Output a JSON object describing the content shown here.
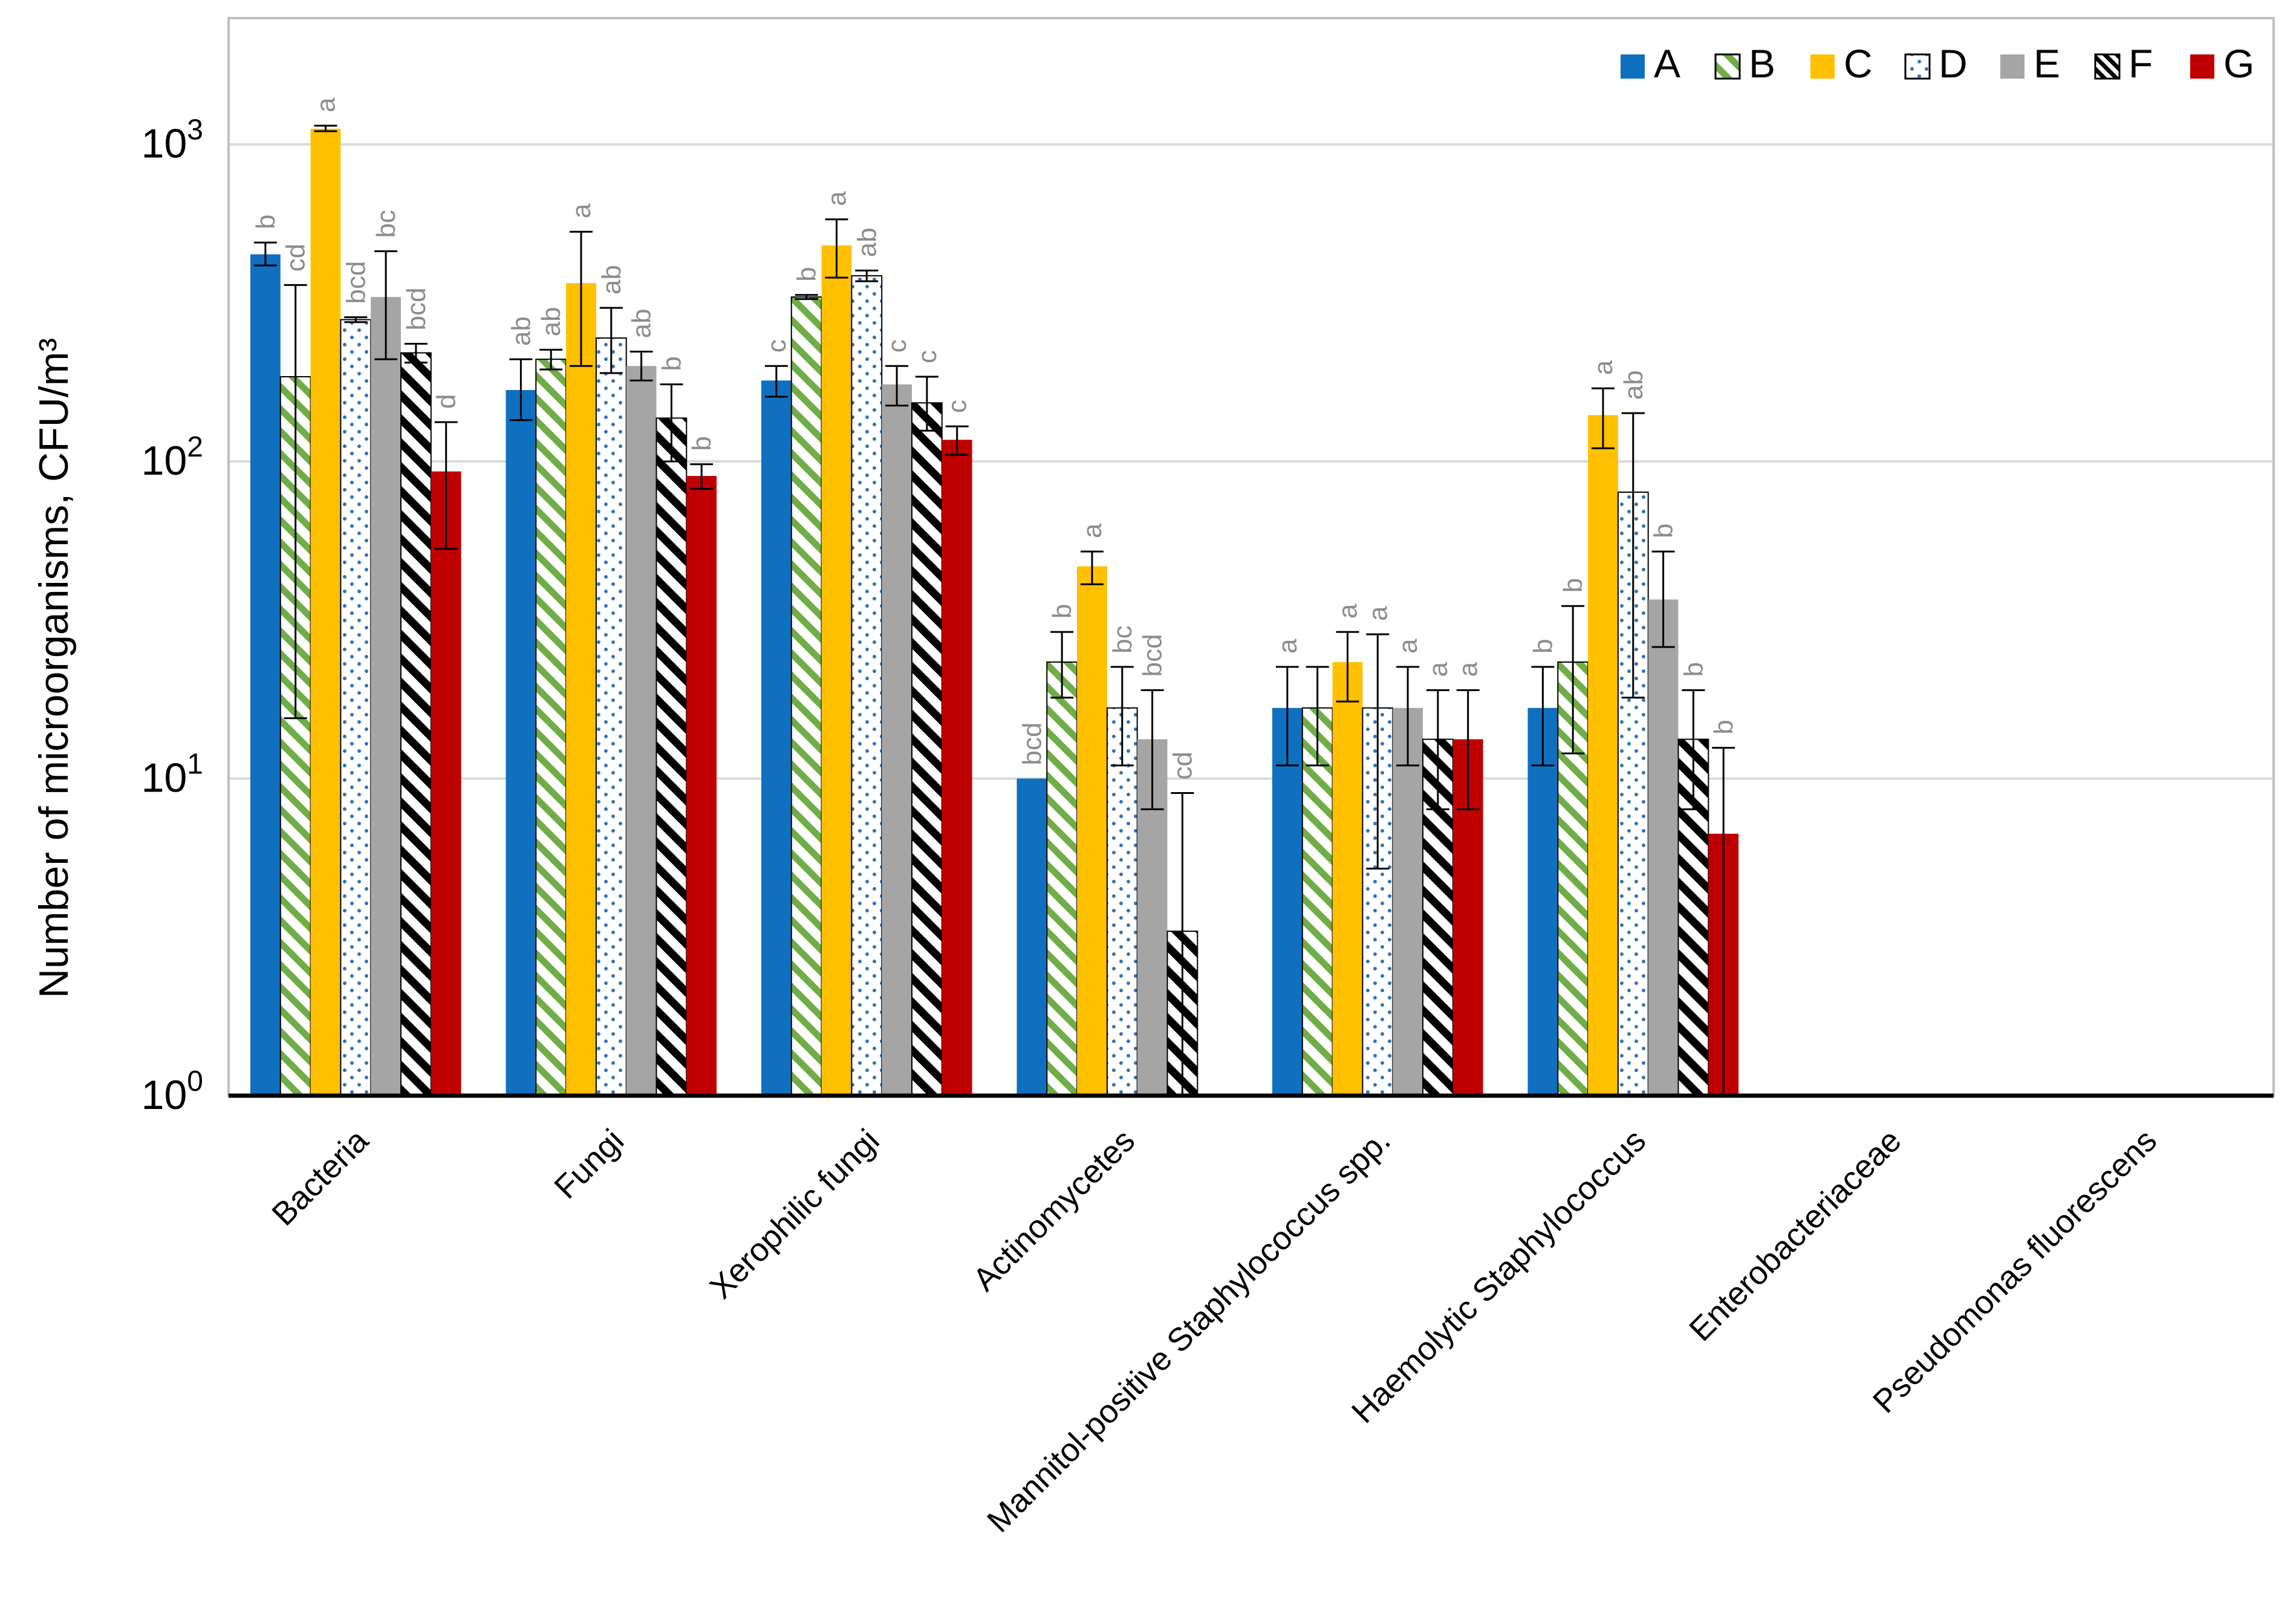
{
  "chart_data": {
    "type": "bar",
    "title": "",
    "xlabel": "",
    "ylabel": "Number of microorganisms,  CFU/m³",
    "yscale": "log",
    "ylim": [
      1,
      2500
    ],
    "yticks": [
      {
        "value": 1,
        "base": "10",
        "exp": "0"
      },
      {
        "value": 10,
        "base": "10",
        "exp": "1"
      },
      {
        "value": 100,
        "base": "10",
        "exp": "2"
      },
      {
        "value": 1000,
        "base": "10",
        "exp": "3"
      }
    ],
    "grid": true,
    "legend_position": "top-right",
    "categories": [
      "Bacteria",
      "Fungi",
      "Xerophilic fungi",
      "Actinomycetes",
      "Mannitol-positive Staphylococcus spp.",
      "Haemolytic Staphylococcus",
      "Enterobacteriaceae",
      "Pseudomonas fluorescens"
    ],
    "series": [
      {
        "name": "A",
        "color": "#1070c0",
        "pattern": "solid",
        "values": [
          450,
          168,
          180,
          10,
          16.7,
          16.7,
          null,
          null
        ],
        "err_low": [
          415,
          135,
          160,
          null,
          11,
          11,
          null,
          null
        ],
        "err_high": [
          490,
          210,
          200,
          null,
          22.5,
          22.5,
          null,
          null
        ],
        "letters": [
          "b",
          "ab",
          "c",
          "bcd",
          "a",
          "b",
          "",
          ""
        ]
      },
      {
        "name": "B",
        "color": "#70ad47",
        "pattern": "diagonal-stripes",
        "values": [
          185,
          210,
          330,
          23.3,
          16.7,
          23.3,
          null,
          null
        ],
        "err_low": [
          15.5,
          195,
          325,
          18,
          11,
          12,
          null,
          null
        ],
        "err_high": [
          360,
          225,
          335,
          29,
          22.5,
          35,
          null,
          null
        ],
        "letters": [
          "cd",
          "ab",
          "b",
          "b",
          "",
          "b",
          "",
          ""
        ]
      },
      {
        "name": "C",
        "color": "#ffc000",
        "pattern": "solid",
        "values": [
          1120,
          365,
          480,
          46.7,
          23.3,
          140,
          null,
          null
        ],
        "err_low": [
          1100,
          200,
          380,
          41,
          17.5,
          110,
          null,
          null
        ],
        "err_high": [
          1145,
          530,
          580,
          52,
          29,
          170,
          null,
          null
        ],
        "letters": [
          "a",
          "a",
          "a",
          "a",
          "a",
          "a",
          "",
          ""
        ]
      },
      {
        "name": "D",
        "color": "#2e75b6",
        "pattern": "dots",
        "values": [
          280,
          245,
          385,
          16.7,
          16.7,
          80,
          null,
          null
        ],
        "err_low": [
          275,
          190,
          370,
          11,
          5.2,
          18,
          null,
          null
        ],
        "err_high": [
          285,
          305,
          400,
          22.5,
          28.5,
          142,
          null,
          null
        ],
        "letters": [
          "bcd",
          "ab",
          "ab",
          "bc",
          "a",
          "ab",
          "",
          ""
        ]
      },
      {
        "name": "E",
        "color": "#a5a5a5",
        "pattern": "solid",
        "values": [
          330,
          200,
          175,
          13.3,
          16.7,
          36.7,
          null,
          null
        ],
        "err_low": [
          210,
          180,
          150,
          8,
          11,
          26,
          null,
          null
        ],
        "err_high": [
          460,
          222,
          200,
          19,
          22.5,
          52,
          null,
          null
        ],
        "letters": [
          "bc",
          "ab",
          "c",
          "bcd",
          "a",
          "b",
          "",
          ""
        ]
      },
      {
        "name": "F",
        "color": "#000000",
        "pattern": "diagonal-checks",
        "values": [
          220,
          137,
          153,
          3.3,
          13.3,
          13.3,
          null,
          null
        ],
        "err_low": [
          205,
          100,
          125,
          1,
          8,
          8,
          null,
          null
        ],
        "err_high": [
          235,
          175,
          185,
          9,
          19,
          19,
          null,
          null
        ],
        "letters": [
          "bcd",
          "b",
          "c",
          "cd",
          "a",
          "b",
          "",
          ""
        ]
      },
      {
        "name": "G",
        "color": "#c00000",
        "pattern": "solid",
        "values": [
          93,
          90,
          117,
          null,
          13.3,
          6.7,
          null,
          null
        ],
        "err_low": [
          53,
          82,
          105,
          null,
          8,
          1,
          null,
          null
        ],
        "err_high": [
          133,
          98,
          129,
          null,
          19,
          12.5,
          null,
          null
        ],
        "letters": [
          "d",
          "b",
          "c",
          "",
          "a",
          "b",
          "",
          ""
        ]
      }
    ]
  }
}
